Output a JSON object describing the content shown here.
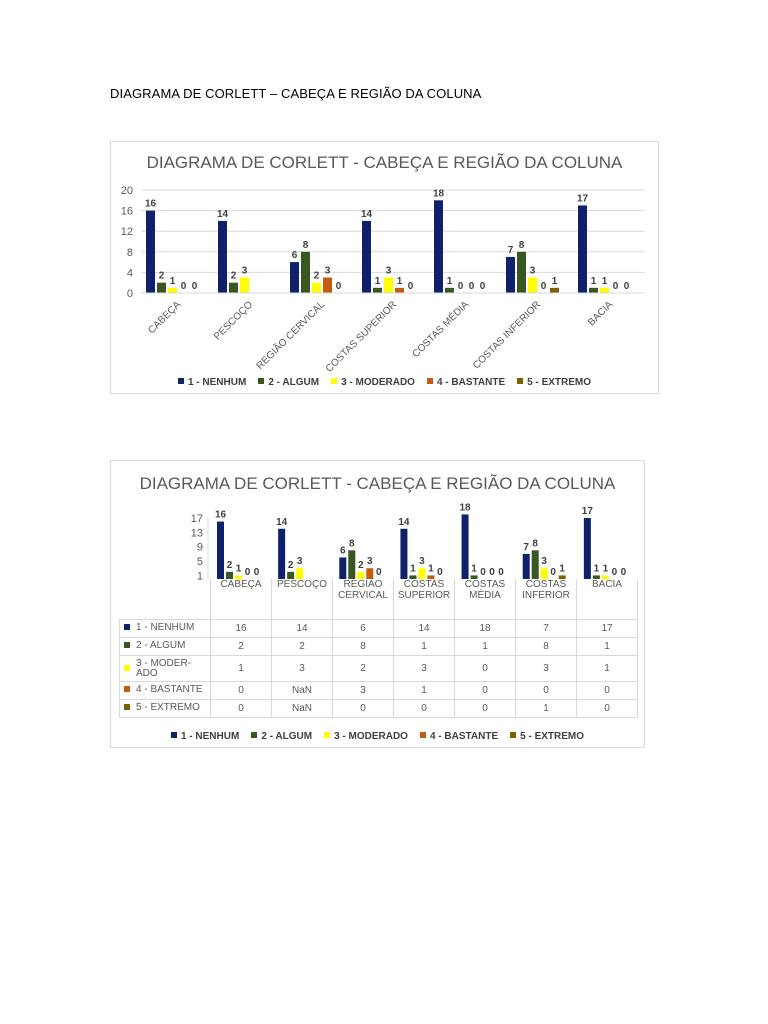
{
  "document": {
    "heading": "DIAGRAMA DE CORLETT – CABEÇA E REGIÃO DA COLUNA"
  },
  "colors": {
    "nenhum": "#0f216b",
    "algum": "#385723",
    "moderado": "#ffff00",
    "bastante": "#c55a11",
    "extremo": "#7f6000",
    "costas_inferior_bastante": "#ff0000"
  },
  "chart_data": [
    {
      "type": "bar",
      "title": "DIAGRAMA DE CORLETT - CABEÇA E REGIÃO DA COLUNA",
      "categories": [
        "CABEÇA",
        "PESCOÇO",
        "REGIÃO CERVICAL",
        "COSTAS SUPERIOR",
        "COSTAS MÉDIA",
        "COSTAS INFERIOR",
        "BACIA"
      ],
      "ylim": [
        0,
        20
      ],
      "yticks": [
        0,
        4,
        8,
        12,
        16,
        20
      ],
      "grid": true,
      "legend_position": "bottom",
      "series": [
        {
          "name": "1 - NENHUM",
          "color": "#0f216b",
          "values": [
            16,
            14,
            6,
            14,
            18,
            7,
            17
          ]
        },
        {
          "name": "2 - ALGUM",
          "color": "#385723",
          "values": [
            2,
            2,
            8,
            1,
            1,
            8,
            1
          ]
        },
        {
          "name": "3 - MODERADO",
          "color": "#ffff00",
          "values": [
            1,
            3,
            2,
            3,
            0,
            3,
            1
          ]
        },
        {
          "name": "4 - BASTANTE",
          "color": "#c55a11",
          "values": [
            0,
            null,
            3,
            1,
            0,
            0,
            0
          ]
        },
        {
          "name": "5 - EXTREMO",
          "color": "#7f6000",
          "values": [
            0,
            null,
            0,
            0,
            0,
            1,
            0
          ]
        }
      ]
    },
    {
      "type": "bar",
      "title": "DIAGRAMA DE CORLETT - CABEÇA E REGIÃO DA COLUNA",
      "categories": [
        "CABEÇA",
        "PESCOÇO",
        "REGIÃO CERVICAL",
        "COSTAS SUPERIOR",
        "COSTAS MÉDIA",
        "COSTAS INFERIOR",
        "BACIA"
      ],
      "table_row_labels": [
        "1 - NENHUM",
        "2 - ALGUM",
        "3 - MODER-ADO",
        "4 - BASTANTE",
        "5 - EXTREMO"
      ],
      "ylim": [
        0,
        17
      ],
      "yticks": [
        1,
        5,
        9,
        13,
        17
      ],
      "grid": false,
      "legend_position": "bottom",
      "table": [
        [
          "16",
          "14",
          "6",
          "14",
          "18",
          "7",
          "17"
        ],
        [
          "2",
          "2",
          "8",
          "1",
          "1",
          "8",
          "1"
        ],
        [
          "1",
          "3",
          "2",
          "3",
          "0",
          "3",
          "1"
        ],
        [
          "0",
          "NaN",
          "3",
          "1",
          "0",
          "0",
          "0"
        ],
        [
          "0",
          "NaN",
          "0",
          "0",
          "0",
          "1",
          "0"
        ]
      ],
      "series": [
        {
          "name": "1 - NENHUM",
          "color": "#0f216b",
          "values": [
            16,
            14,
            6,
            14,
            18,
            7,
            17
          ]
        },
        {
          "name": "2 - ALGUM",
          "color": "#385723",
          "values": [
            2,
            2,
            8,
            1,
            1,
            8,
            1
          ]
        },
        {
          "name": "3 - MODERADO",
          "color": "#ffff00",
          "values": [
            1,
            3,
            2,
            3,
            0,
            3,
            1
          ]
        },
        {
          "name": "4 - BASTANTE",
          "color": "#c55a11",
          "values": [
            0,
            null,
            3,
            1,
            0,
            0,
            0
          ]
        },
        {
          "name": "5 - EXTREMO",
          "color": "#7f6000",
          "values": [
            0,
            null,
            0,
            0,
            0,
            1,
            0
          ]
        }
      ]
    }
  ]
}
